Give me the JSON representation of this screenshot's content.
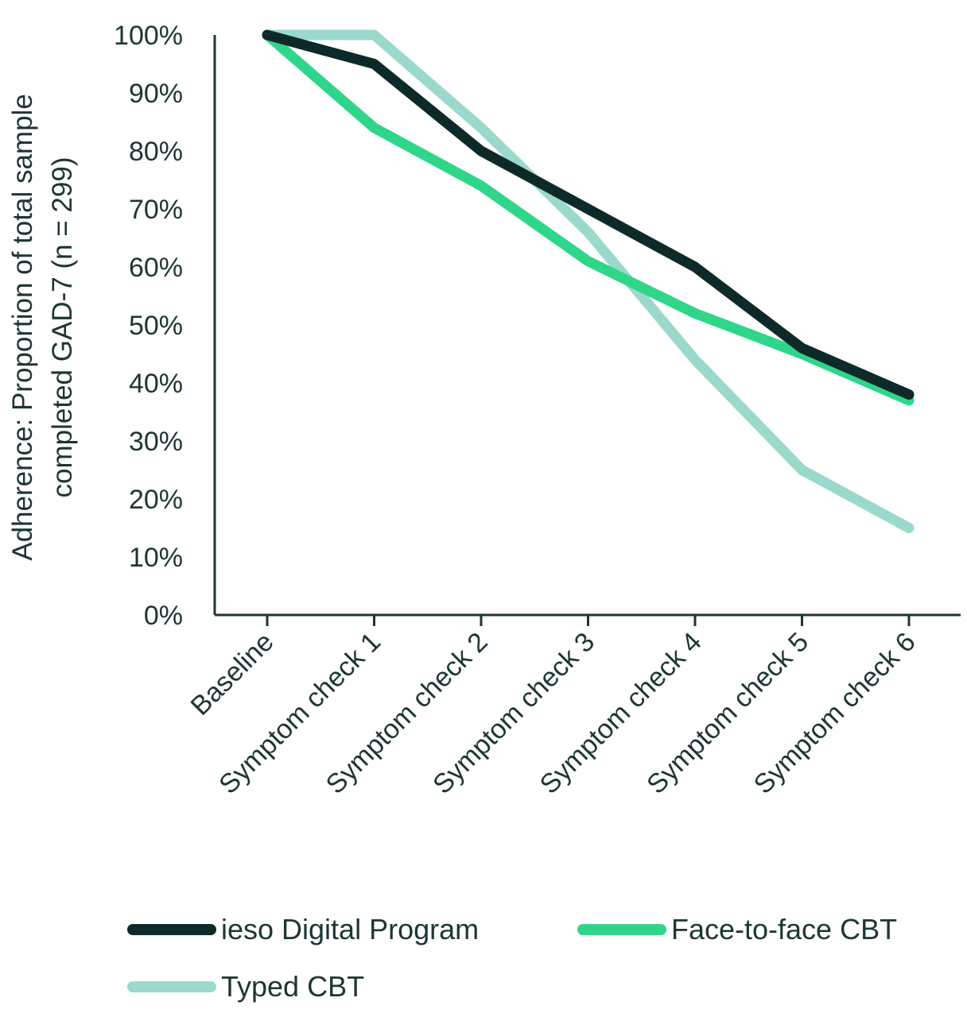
{
  "chart_data": {
    "type": "line",
    "title": "",
    "ylabel": "Adherence: Proportion of total sample completed GAD-7 (n = 299)",
    "ylabel_lines": [
      "Adherence: Proportion of total sample",
      "completed GAD-7 (n = 299)"
    ],
    "xlabel": "",
    "categories": [
      "Baseline",
      "Symptom check 1",
      "Symptom check 2",
      "Symptom check 3",
      "Symptom check 4",
      "Symptom check 5",
      "Symptom check 6"
    ],
    "ylim": [
      0,
      100
    ],
    "yticks": [
      "0%",
      "10%",
      "20%",
      "30%",
      "40%",
      "50%",
      "60%",
      "70%",
      "80%",
      "90%",
      "100%"
    ],
    "grid": false,
    "legend_position": "bottom",
    "series": [
      {
        "name": "ieso Digital Program",
        "color": "#0e2a28",
        "values": [
          100,
          95,
          80,
          70,
          60,
          46,
          38
        ]
      },
      {
        "name": "Face-to-face CBT",
        "color": "#2fd68a",
        "values": [
          100,
          84,
          74,
          61,
          52,
          45,
          37
        ]
      },
      {
        "name": "Typed CBT",
        "color": "#9ad9cc",
        "values": [
          100,
          100,
          84,
          66,
          44,
          25,
          15
        ]
      }
    ],
    "axis_color": "#1c3633"
  }
}
